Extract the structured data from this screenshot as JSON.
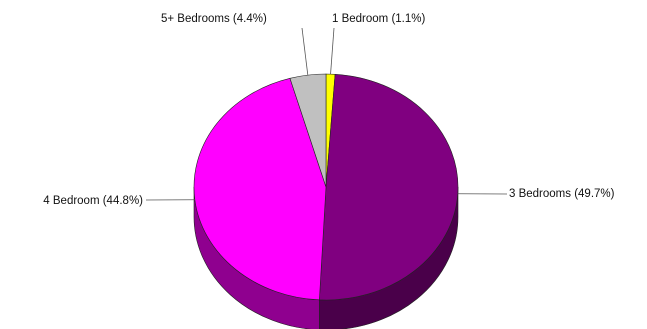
{
  "chart_data": {
    "type": "pie",
    "title": "",
    "slices": [
      {
        "label": "1 Bedroom (1.1%)",
        "value": 1.1,
        "color": "#ffff00",
        "side": "#b3b300"
      },
      {
        "label": "3 Bedrooms (49.7%)",
        "value": 49.7,
        "color": "#800080",
        "side": "#4a004a"
      },
      {
        "label": "4 Bedroom (44.8%)",
        "value": 44.8,
        "color": "#ff00ff",
        "side": "#8f008f"
      },
      {
        "label": "5+ Bedrooms (4.4%)",
        "value": 4.4,
        "color": "#c0c0c0",
        "side": "#808080"
      }
    ]
  }
}
